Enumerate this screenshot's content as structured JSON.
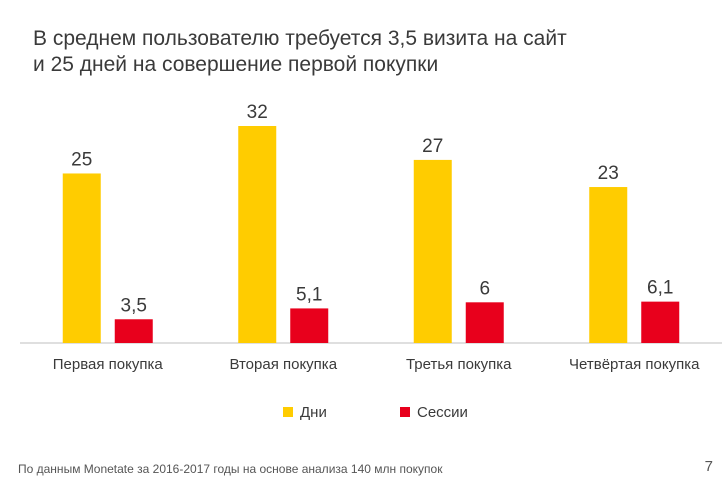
{
  "title": {
    "line1": "В среднем пользователю требуется 3,5 визита на сайт",
    "line2": "и 25 дней на совершение первой покупки"
  },
  "chart_data": {
    "type": "bar",
    "categories": [
      "Первая покупка",
      "Вторая покупка",
      "Третья покупка",
      "Четвёртая покупка"
    ],
    "series": [
      {
        "name": "Дни",
        "values": [
          25,
          32,
          27,
          23
        ],
        "labels": [
          "25",
          "32",
          "27",
          "23"
        ],
        "color": "#FFCC00"
      },
      {
        "name": "Сессии",
        "values": [
          3.5,
          5.1,
          6,
          6.1
        ],
        "labels": [
          "3,5",
          "5,1",
          "6",
          "6,1"
        ],
        "color": "#E8001C"
      }
    ],
    "ylim": [
      0,
      32
    ],
    "grid": false,
    "legend": "bottom-center",
    "data_labels": true
  },
  "footnote": "По данным Monetate за 2016-2017 годы на основе анализа 140 млн покупок",
  "page_number": "7",
  "colors": {
    "text": "#3a3a3a",
    "axis": "#bfbfbf"
  }
}
